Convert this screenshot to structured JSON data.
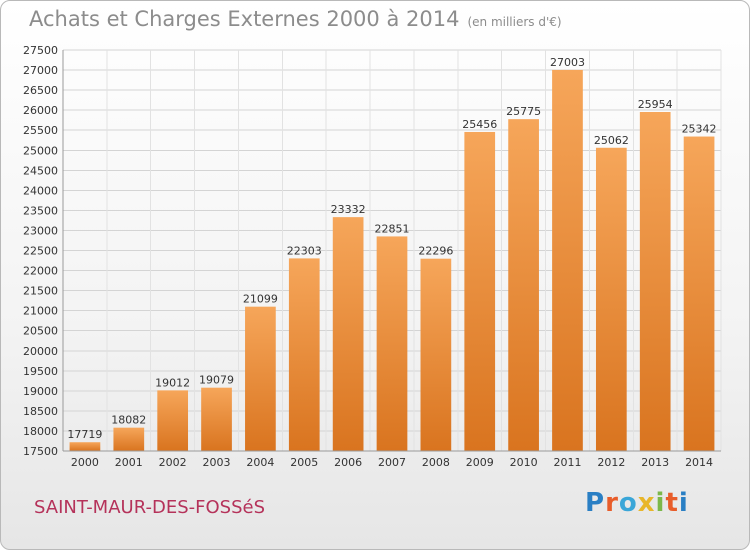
{
  "header": {
    "title": "Achats et Charges Externes 2000 à 2014",
    "subtitle": "(en milliers d'€)"
  },
  "footer": {
    "city": "SAINT-MAUR-DES-FOSSéS",
    "logo_text": "Proxiti",
    "logo_colors": [
      "#2a7fc4",
      "#e85d2a",
      "#3aa6d8",
      "#e8b62a",
      "#7cb84a",
      "#e85d2a",
      "#2a7fc4"
    ]
  },
  "chart_data": {
    "type": "bar",
    "title": "Achats et Charges Externes 2000 à 2014",
    "subtitle": "(en milliers d'€)",
    "categories": [
      "2000",
      "2001",
      "2002",
      "2003",
      "2004",
      "2005",
      "2006",
      "2007",
      "2008",
      "2009",
      "2010",
      "2011",
      "2012",
      "2013",
      "2014"
    ],
    "values": [
      17719,
      18082,
      19012,
      19079,
      21099,
      22303,
      23332,
      22851,
      22296,
      25456,
      25775,
      27003,
      25062,
      25954,
      25342
    ],
    "ylim": [
      17500,
      27500
    ],
    "yticks": [
      17500,
      18000,
      18500,
      19000,
      19500,
      20000,
      20500,
      21000,
      21500,
      22000,
      22500,
      23000,
      23500,
      24000,
      24500,
      25000,
      25500,
      26000,
      26500,
      27000,
      27500
    ],
    "grid": true,
    "bar_color_light": "#f6a65a",
    "bar_color_dark": "#d9741f"
  }
}
